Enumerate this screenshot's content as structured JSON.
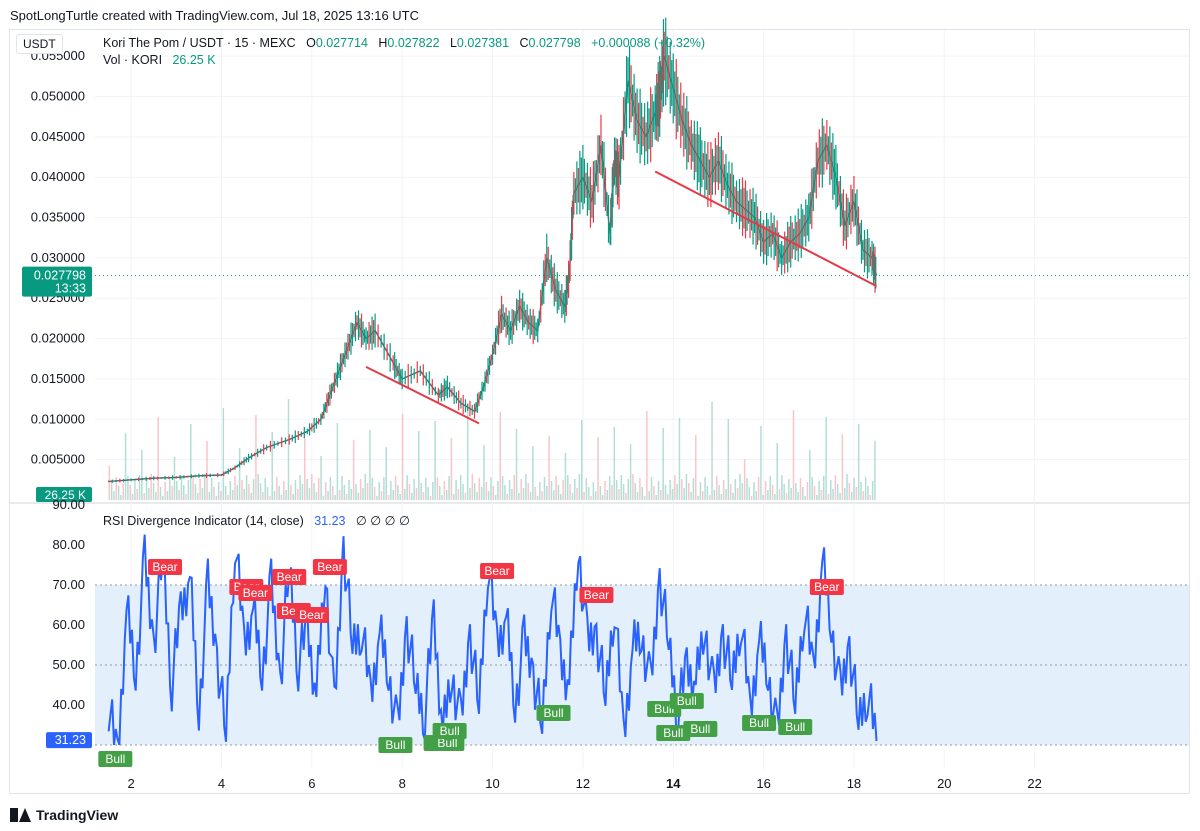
{
  "caption": "SpotLongTurtle created with TradingView.com, Jul 18, 2025 13:16 UTC",
  "quote_currency": "USDT",
  "legend": {
    "symbol": "Kori The Pom / USDT · 15 · MEXC",
    "open_label": "O",
    "open": "0.027714",
    "high_label": "H",
    "high": "0.027822",
    "low_label": "L",
    "low": "0.027381",
    "close_label": "C",
    "close": "0.027798",
    "change": "+0.000088 (+0.32%)",
    "vol_label": "Vol · KORI",
    "vol_value": "26.25 K"
  },
  "rsi_legend": {
    "title": "RSI Divergence Indicator (14, close)",
    "value": "31.23",
    "extras": "∅ ∅ ∅ ∅"
  },
  "price_badge": {
    "price": "0.027798",
    "countdown": "13:33"
  },
  "volume_badge": "26.25 K",
  "rsi_badge": "31.23",
  "footer": "TradingView",
  "colors": {
    "up": "#089981",
    "down": "#f23645",
    "rsi": "#2962ff",
    "bull": "#43a047",
    "bear": "#f23645",
    "trend": "#e53945",
    "band": "#e3f0fc"
  },
  "chart_data": [
    {
      "type": "line",
      "title": "Kori The Pom / USDT · 15 · MEXC",
      "xlabel": "",
      "ylabel": "",
      "x_ticks": [
        "2",
        "4",
        "6",
        "8",
        "10",
        "12",
        "14",
        "16",
        "18",
        "20",
        "22"
      ],
      "y_ticks": [
        "0.005000",
        "0.010000",
        "0.015000",
        "0.020000",
        "0.025000",
        "0.030000",
        "0.035000",
        "0.040000",
        "0.045000",
        "0.050000",
        "0.055000"
      ],
      "xlim": [
        1.2,
        24.0
      ],
      "ylim": [
        0.0,
        0.057
      ],
      "series": [
        {
          "x": [
            1.5,
            2.0,
            2.5,
            3.0,
            3.5,
            4.0,
            4.3,
            4.6,
            5.0,
            5.5,
            5.9,
            6.2,
            6.4,
            6.6,
            6.8,
            7.0,
            7.2,
            7.4,
            7.8,
            8.0,
            8.4,
            8.8,
            9.0,
            9.3,
            9.6,
            9.8,
            10.0,
            10.2,
            10.4,
            10.6,
            10.8,
            11.0,
            11.2,
            11.4,
            11.6,
            11.7,
            11.8,
            12.0,
            12.2,
            12.4,
            12.6,
            12.7,
            12.8,
            13.0,
            13.2,
            13.4,
            13.6,
            13.7,
            13.8,
            14.0,
            14.2,
            14.4,
            14.6,
            14.8,
            15.0,
            15.2,
            15.4,
            15.6,
            15.8,
            16.0,
            16.2,
            16.4,
            16.6,
            16.8,
            17.0,
            17.2,
            17.4,
            17.6,
            17.8,
            18.0,
            18.2,
            18.4,
            18.5
          ],
          "values": [
            0.0023,
            0.0025,
            0.0027,
            0.0028,
            0.003,
            0.0031,
            0.004,
            0.0052,
            0.0065,
            0.0075,
            0.0085,
            0.01,
            0.013,
            0.016,
            0.019,
            0.022,
            0.02,
            0.021,
            0.017,
            0.015,
            0.016,
            0.013,
            0.014,
            0.012,
            0.011,
            0.014,
            0.018,
            0.023,
            0.021,
            0.024,
            0.022,
            0.021,
            0.03,
            0.026,
            0.024,
            0.028,
            0.038,
            0.04,
            0.037,
            0.044,
            0.033,
            0.042,
            0.04,
            0.052,
            0.047,
            0.045,
            0.048,
            0.05,
            0.055,
            0.051,
            0.047,
            0.044,
            0.042,
            0.04,
            0.042,
            0.039,
            0.037,
            0.036,
            0.035,
            0.032,
            0.033,
            0.03,
            0.032,
            0.033,
            0.035,
            0.042,
            0.044,
            0.04,
            0.034,
            0.037,
            0.031,
            0.03,
            0.0278
          ]
        }
      ],
      "trendlines": [
        {
          "x": [
            7.2,
            9.7
          ],
          "y": [
            0.0165,
            0.0095
          ]
        },
        {
          "x": [
            13.6,
            18.5
          ],
          "y": [
            0.0407,
            0.0265
          ]
        }
      ]
    },
    {
      "type": "line",
      "title": "RSI Divergence Indicator (14, close)",
      "y_ticks": [
        "40.00",
        "50.00",
        "60.00",
        "70.00",
        "80.00",
        "90.00"
      ],
      "ylim": [
        24,
        90
      ],
      "band": [
        30,
        70
      ],
      "midline": 50,
      "series": [
        {
          "x": [
            1.5,
            1.7,
            1.9,
            2.1,
            2.3,
            2.5,
            2.7,
            2.9,
            3.1,
            3.3,
            3.5,
            3.7,
            3.9,
            4.1,
            4.3,
            4.5,
            4.7,
            4.9,
            5.1,
            5.3,
            5.5,
            5.7,
            5.9,
            6.1,
            6.3,
            6.5,
            6.7,
            6.9,
            7.1,
            7.3,
            7.5,
            7.7,
            7.9,
            8.1,
            8.3,
            8.5,
            8.7,
            8.9,
            9.1,
            9.3,
            9.5,
            9.7,
            9.9,
            10.1,
            10.3,
            10.5,
            10.7,
            10.9,
            11.1,
            11.3,
            11.5,
            11.7,
            11.9,
            12.1,
            12.3,
            12.5,
            12.7,
            12.9,
            13.1,
            13.3,
            13.5,
            13.7,
            13.9,
            14.1,
            14.3,
            14.5,
            14.7,
            14.9,
            15.1,
            15.3,
            15.5,
            15.7,
            15.9,
            16.1,
            16.3,
            16.5,
            16.7,
            16.9,
            17.1,
            17.3,
            17.5,
            17.7,
            17.9,
            18.1,
            18.3,
            18.5
          ],
          "values": [
            40,
            27,
            64,
            48,
            76,
            55,
            78,
            45,
            64,
            72,
            38,
            70,
            52,
            33,
            82,
            55,
            64,
            48,
            70,
            46,
            75,
            50,
            60,
            42,
            74,
            38,
            80,
            55,
            60,
            42,
            58,
            48,
            33,
            60,
            45,
            38,
            62,
            33,
            48,
            35,
            58,
            40,
            76,
            55,
            62,
            40,
            56,
            48,
            35,
            70,
            52,
            45,
            80,
            55,
            58,
            42,
            66,
            32,
            54,
            58,
            44,
            72,
            56,
            38,
            50,
            45,
            60,
            42,
            58,
            46,
            62,
            38,
            56,
            48,
            32,
            58,
            40,
            65,
            48,
            76,
            60,
            42,
            55,
            36,
            44,
            31
          ]
        }
      ],
      "labels": [
        {
          "text": "Bear",
          "x": 2.75,
          "y": 74.5
        },
        {
          "text": "Bear",
          "x": 4.55,
          "y": 69.5
        },
        {
          "text": "Bear",
          "x": 4.75,
          "y": 68
        },
        {
          "text": "Bear",
          "x": 5.5,
          "y": 72
        },
        {
          "text": "Bear",
          "x": 5.6,
          "y": 63.5
        },
        {
          "text": "Bear",
          "x": 6.0,
          "y": 62.5
        },
        {
          "text": "Bear",
          "x": 6.4,
          "y": 74.5
        },
        {
          "text": "Bear",
          "x": 10.1,
          "y": 73.5
        },
        {
          "text": "Bear",
          "x": 12.3,
          "y": 67.5
        },
        {
          "text": "Bear",
          "x": 17.4,
          "y": 69.5
        },
        {
          "text": "Bull",
          "x": 1.65,
          "y": 26.5
        },
        {
          "text": "Bull",
          "x": 7.85,
          "y": 30
        },
        {
          "text": "Bull",
          "x": 8.85,
          "y": 30.5
        },
        {
          "text": "Bull",
          "x": 9.0,
          "y": 30.5
        },
        {
          "text": "Bull",
          "x": 9.05,
          "y": 33.5
        },
        {
          "text": "Bull",
          "x": 11.35,
          "y": 38
        },
        {
          "text": "Bull",
          "x": 13.8,
          "y": 39
        },
        {
          "text": "Bull",
          "x": 14.0,
          "y": 33
        },
        {
          "text": "Bull",
          "x": 14.3,
          "y": 41
        },
        {
          "text": "Bull",
          "x": 14.6,
          "y": 34
        },
        {
          "text": "Bull",
          "x": 15.9,
          "y": 35.5
        },
        {
          "text": "Bull",
          "x": 16.7,
          "y": 34.5
        }
      ]
    }
  ]
}
